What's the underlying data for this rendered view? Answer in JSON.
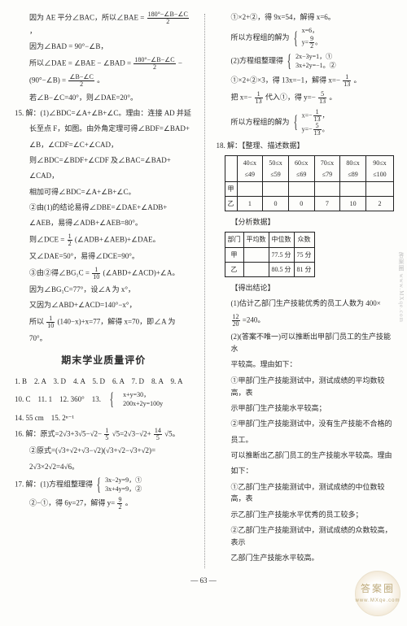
{
  "left": {
    "p1": "因为 AE 平分∠BAC，所以∠BAE = ",
    "p1fracN": "180°−∠B−∠C",
    "p1fracD": "2",
    "p1end": "，",
    "p2": "因为∠BAD = 90°−∠B，",
    "p3a": "所以∠DAE = ∠BAE − ∠BAD = ",
    "p3fracN": "180°−∠B−∠C",
    "p3fracD": "2",
    "p3b": " −",
    "p4a": "(90°−∠B) = ",
    "p4fracN": "∠B−∠C",
    "p4fracD": "2",
    "p4b": "。",
    "p5": "若∠B−∠C=40°，则∠DAE=20°。",
    "p6": "15. 解：(1)∠BDC=∠A+∠B+∠C。理由：连接 AD 并延",
    "p7": "长至点 F，如图。由外角定理可得∠BDF=∠BAD+",
    "p8": "∠B，∠CDF=∠C+∠CAD，",
    "p9": "则∠BDC=∠BDF+∠CDF 及∠BAC=∠BAD+",
    "p10": "∠CAD，",
    "p11": "相加可得∠BDC=∠A+∠B+∠C。",
    "p12": "②由(1)的结论易得∠DBE=∠DAE+∠ADB+",
    "p13": "∠AEB，易得∠ADB+∠AEB=80°。",
    "p14a": "则∠DCE = ",
    "p14fracN": "1",
    "p14fracD": "2",
    "p14b": "(∠ADB+∠AEB)+∠DAE。",
    "p15": "又∠DAE=50°，易得∠DCE=90°。",
    "p16a": "③由②得∠BG₁C = ",
    "p16fracN": "1",
    "p16fracD": "10",
    "p16b": "(∠ABD+∠ACD)+∠A。",
    "p17": "因为∠BG₁C=77°，设∠A 为 x°，",
    "p18": "又因为∠ABD+∠ACD=140°−x°，",
    "p19a": "所以",
    "p19fracN": "1",
    "p19fracD": "10",
    "p19b": "(140−x)+x=77，解得 x=70，即∠A 为",
    "p20": "70°。",
    "title": "期末学业质量评价",
    "ans1": "1. B　2. A　3. D　4. A　5. D　6. A　7. D　8. A　9. A",
    "ans2a": "10. C　11. 1　12. 360°　13. ",
    "ans2b1": "x+y=30，",
    "ans2b2": "200x+2y=100y",
    "ans3": "14. 55 cm　15. 2ⁿ⁻¹",
    "p21a": "16. 解：原式=2√3+3√5−√2−",
    "p21fracN": "1",
    "p21fracD": "5",
    "p21b": "√5=2√3−√2+",
    "p21fracN2": "14",
    "p21fracD2": "5",
    "p21c": "√5。",
    "p22": "②原式=(√3+√2+√3−√2)(√3+√2−√3+√2)=",
    "p23": "2√3×2√2=4√6。",
    "p24": "17. 解：(1)方程组整理得",
    "p24a": "3x−2y=9，①",
    "p24b": "3x+4y=9，②",
    "p25a": "②−①，得 6y=27，解得 y=",
    "p25fracN": "9",
    "p25fracD": "2",
    "p25b": "。"
  },
  "right": {
    "r1": "①×2+②，得 9x=54，解得 x=6。",
    "r2a": "所以方程组的解为",
    "r2b1": "x=6，",
    "r2b2": "y=",
    "r2frN": "9",
    "r2frD": "2",
    "r2b3": "。",
    "r3": "(2)方程组整理得",
    "r3a": "2x−3y=1，①",
    "r3b": "3x+2y=−1。②",
    "r4a": "①×2+②×3，得 13x=−1，解得 x=−",
    "r4frN": "1",
    "r4frD": "13",
    "r4b": "。",
    "r5a": "把 x=−",
    "r5frN": "1",
    "r5frD": "13",
    "r5b": "代入①，得 y=−",
    "r5frN2": "5",
    "r5frD2": "13",
    "r5c": "。",
    "r6a": "所以方程组的解为",
    "r6b1": "x=−",
    "r6frN": "1",
    "r6frD": "13",
    "r6b2": "，",
    "r6c1": "y=−",
    "r6frN2": "5",
    "r6frD2": "13",
    "r6c2": "。",
    "r7": "18. 解：【整理、描述数据】",
    "t1": {
      "head": [
        "",
        "40≤x\n≤49",
        "50≤x\n≤59",
        "60≤x\n≤69",
        "70≤x\n≤79",
        "80≤x\n≤89",
        "90≤x\n≤100"
      ],
      "rowA": [
        "甲",
        "",
        "",
        "",
        "",
        "",
        ""
      ],
      "rowB": [
        "乙",
        "1",
        "0",
        "0",
        "7",
        "10",
        "2"
      ]
    },
    "r8": "【分析数据】",
    "t2": {
      "head": [
        "部门",
        "平均数",
        "中位数",
        "众数"
      ],
      "rowA": [
        "甲",
        "",
        "77.5 分",
        "75 分"
      ],
      "rowB": [
        "乙",
        "",
        "80.5 分",
        "81 分"
      ]
    },
    "r9": "【得出结论】",
    "r10": "(1)估计乙部门生产技能优秀的员工人数为 400×",
    "r11a": "",
    "r11frN": "12",
    "r11frD": "20",
    "r11b": "=240。",
    "r12": "(2)(答案不唯一)可以推断出甲部门员工的生产技能水",
    "r13": "平较高。理由如下：",
    "r14": "①甲部门生产技能测试中，测试成绩的平均数较高，表",
    "r15": "示甲部门生产技能水平较高；",
    "r16": "②甲部门生产技能测试中，没有生产技能不合格的",
    "r17": "员工。",
    "r18": "可以推断出乙部门员工的生产技能水平较高。理由",
    "r19": "如下：",
    "r20": "①乙部门生产技能测试中，测试成绩的中位数较高，表",
    "r21": "示乙部门生产技能水平优秀的员工较多；",
    "r22": "②乙部门生产技能测试中，测试成绩的众数较高，表示",
    "r23": "乙部门生产技能水平较高。"
  },
  "pagenum": "— 63 —",
  "wm1": "答案圈",
  "wm2": "www.MXqe.com",
  "wmside": "答案圈  www.MXqe.com"
}
